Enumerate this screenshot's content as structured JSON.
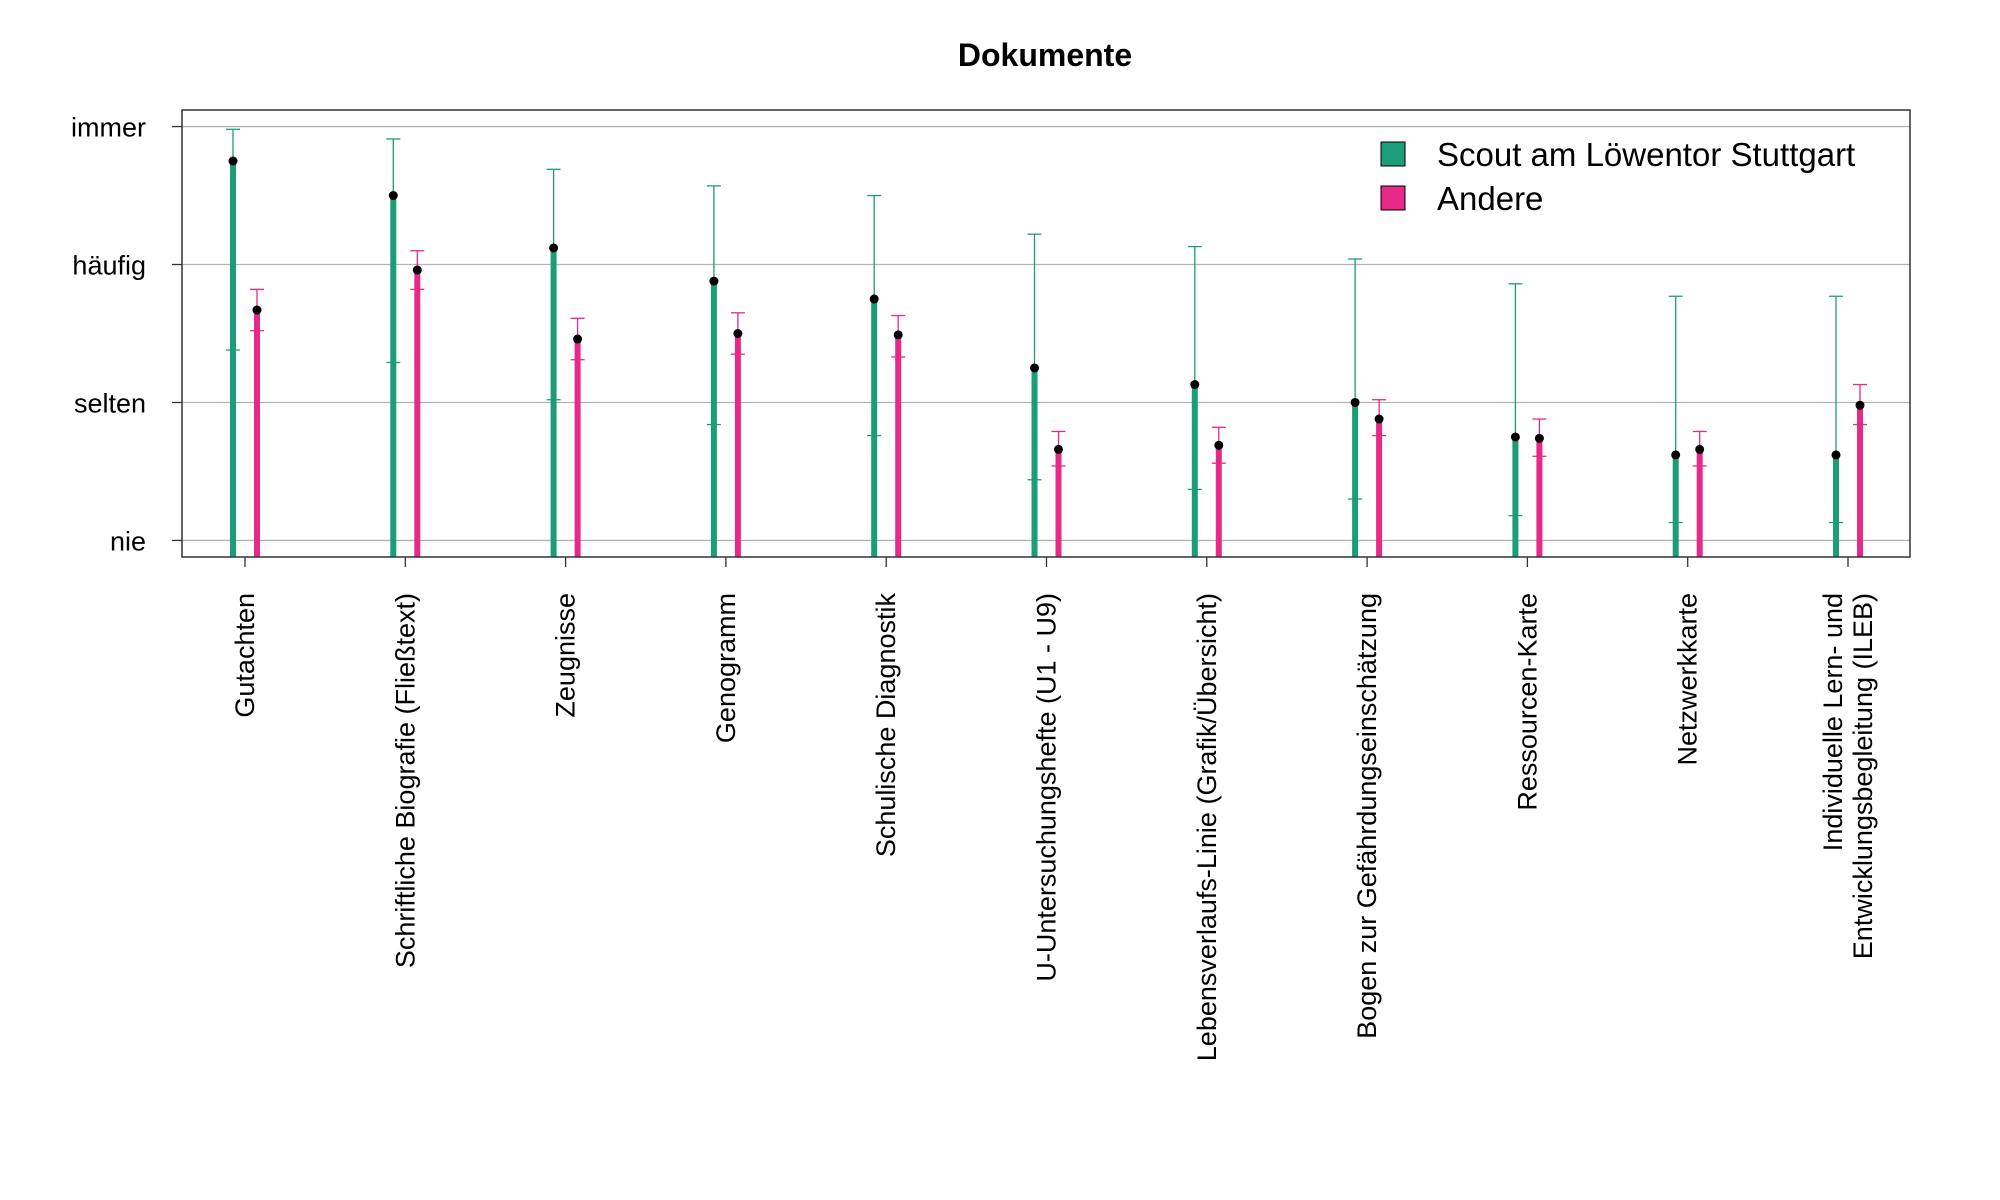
{
  "chart_data": {
    "type": "errorbar",
    "title": "Dokumente",
    "xlabel": "",
    "ylabel": "",
    "ylim": [
      0.88,
      4.12
    ],
    "yticks": [
      {
        "value": 1,
        "label": "nie"
      },
      {
        "value": 2,
        "label": "selten"
      },
      {
        "value": 3,
        "label": "häufig"
      },
      {
        "value": 4,
        "label": "immer"
      }
    ],
    "grid": true,
    "legend_position": "top-right",
    "categories": [
      [
        "Gutachten"
      ],
      [
        "Schriftliche Biografie (Fließtext)"
      ],
      [
        "Zeugnisse"
      ],
      [
        "Genogramm"
      ],
      [
        "Schulische Diagnostik"
      ],
      [
        "U-Untersuchungshefte (U1 - U9)"
      ],
      [
        "Lebensverlaufs-Linie (Grafik/Übersicht)"
      ],
      [
        "Bogen zur Gefährdungseinschätzung"
      ],
      [
        "Ressourcen-Karte"
      ],
      [
        "Netzwerkkarte"
      ],
      [
        "Individuelle Lern- und",
        "Entwicklungsbegleitung (ILEB)"
      ]
    ],
    "series": [
      {
        "name": "Scout am Löwentor Stuttgart",
        "color": "#1b9e77",
        "mean": [
          3.75,
          3.5,
          3.12,
          2.88,
          2.75,
          2.25,
          2.13,
          2.0,
          1.75,
          1.62,
          1.62
        ],
        "lower": [
          2.38,
          2.29,
          2.02,
          1.84,
          1.76,
          1.44,
          1.37,
          1.3,
          1.18,
          1.13,
          1.13
        ],
        "upper": [
          3.98,
          3.91,
          3.69,
          3.57,
          3.5,
          3.22,
          3.13,
          3.04,
          2.86,
          2.77,
          2.77
        ]
      },
      {
        "name": "Andere",
        "color": "#e7298a",
        "mean": [
          2.67,
          2.96,
          2.46,
          2.5,
          2.49,
          1.66,
          1.69,
          1.88,
          1.74,
          1.66,
          1.98
        ],
        "lower": [
          2.52,
          2.82,
          2.31,
          2.35,
          2.33,
          1.54,
          1.56,
          1.76,
          1.61,
          1.54,
          1.84
        ],
        "upper": [
          2.82,
          3.1,
          2.61,
          2.65,
          2.63,
          1.79,
          1.82,
          2.02,
          1.88,
          1.79,
          2.13
        ]
      }
    ]
  }
}
